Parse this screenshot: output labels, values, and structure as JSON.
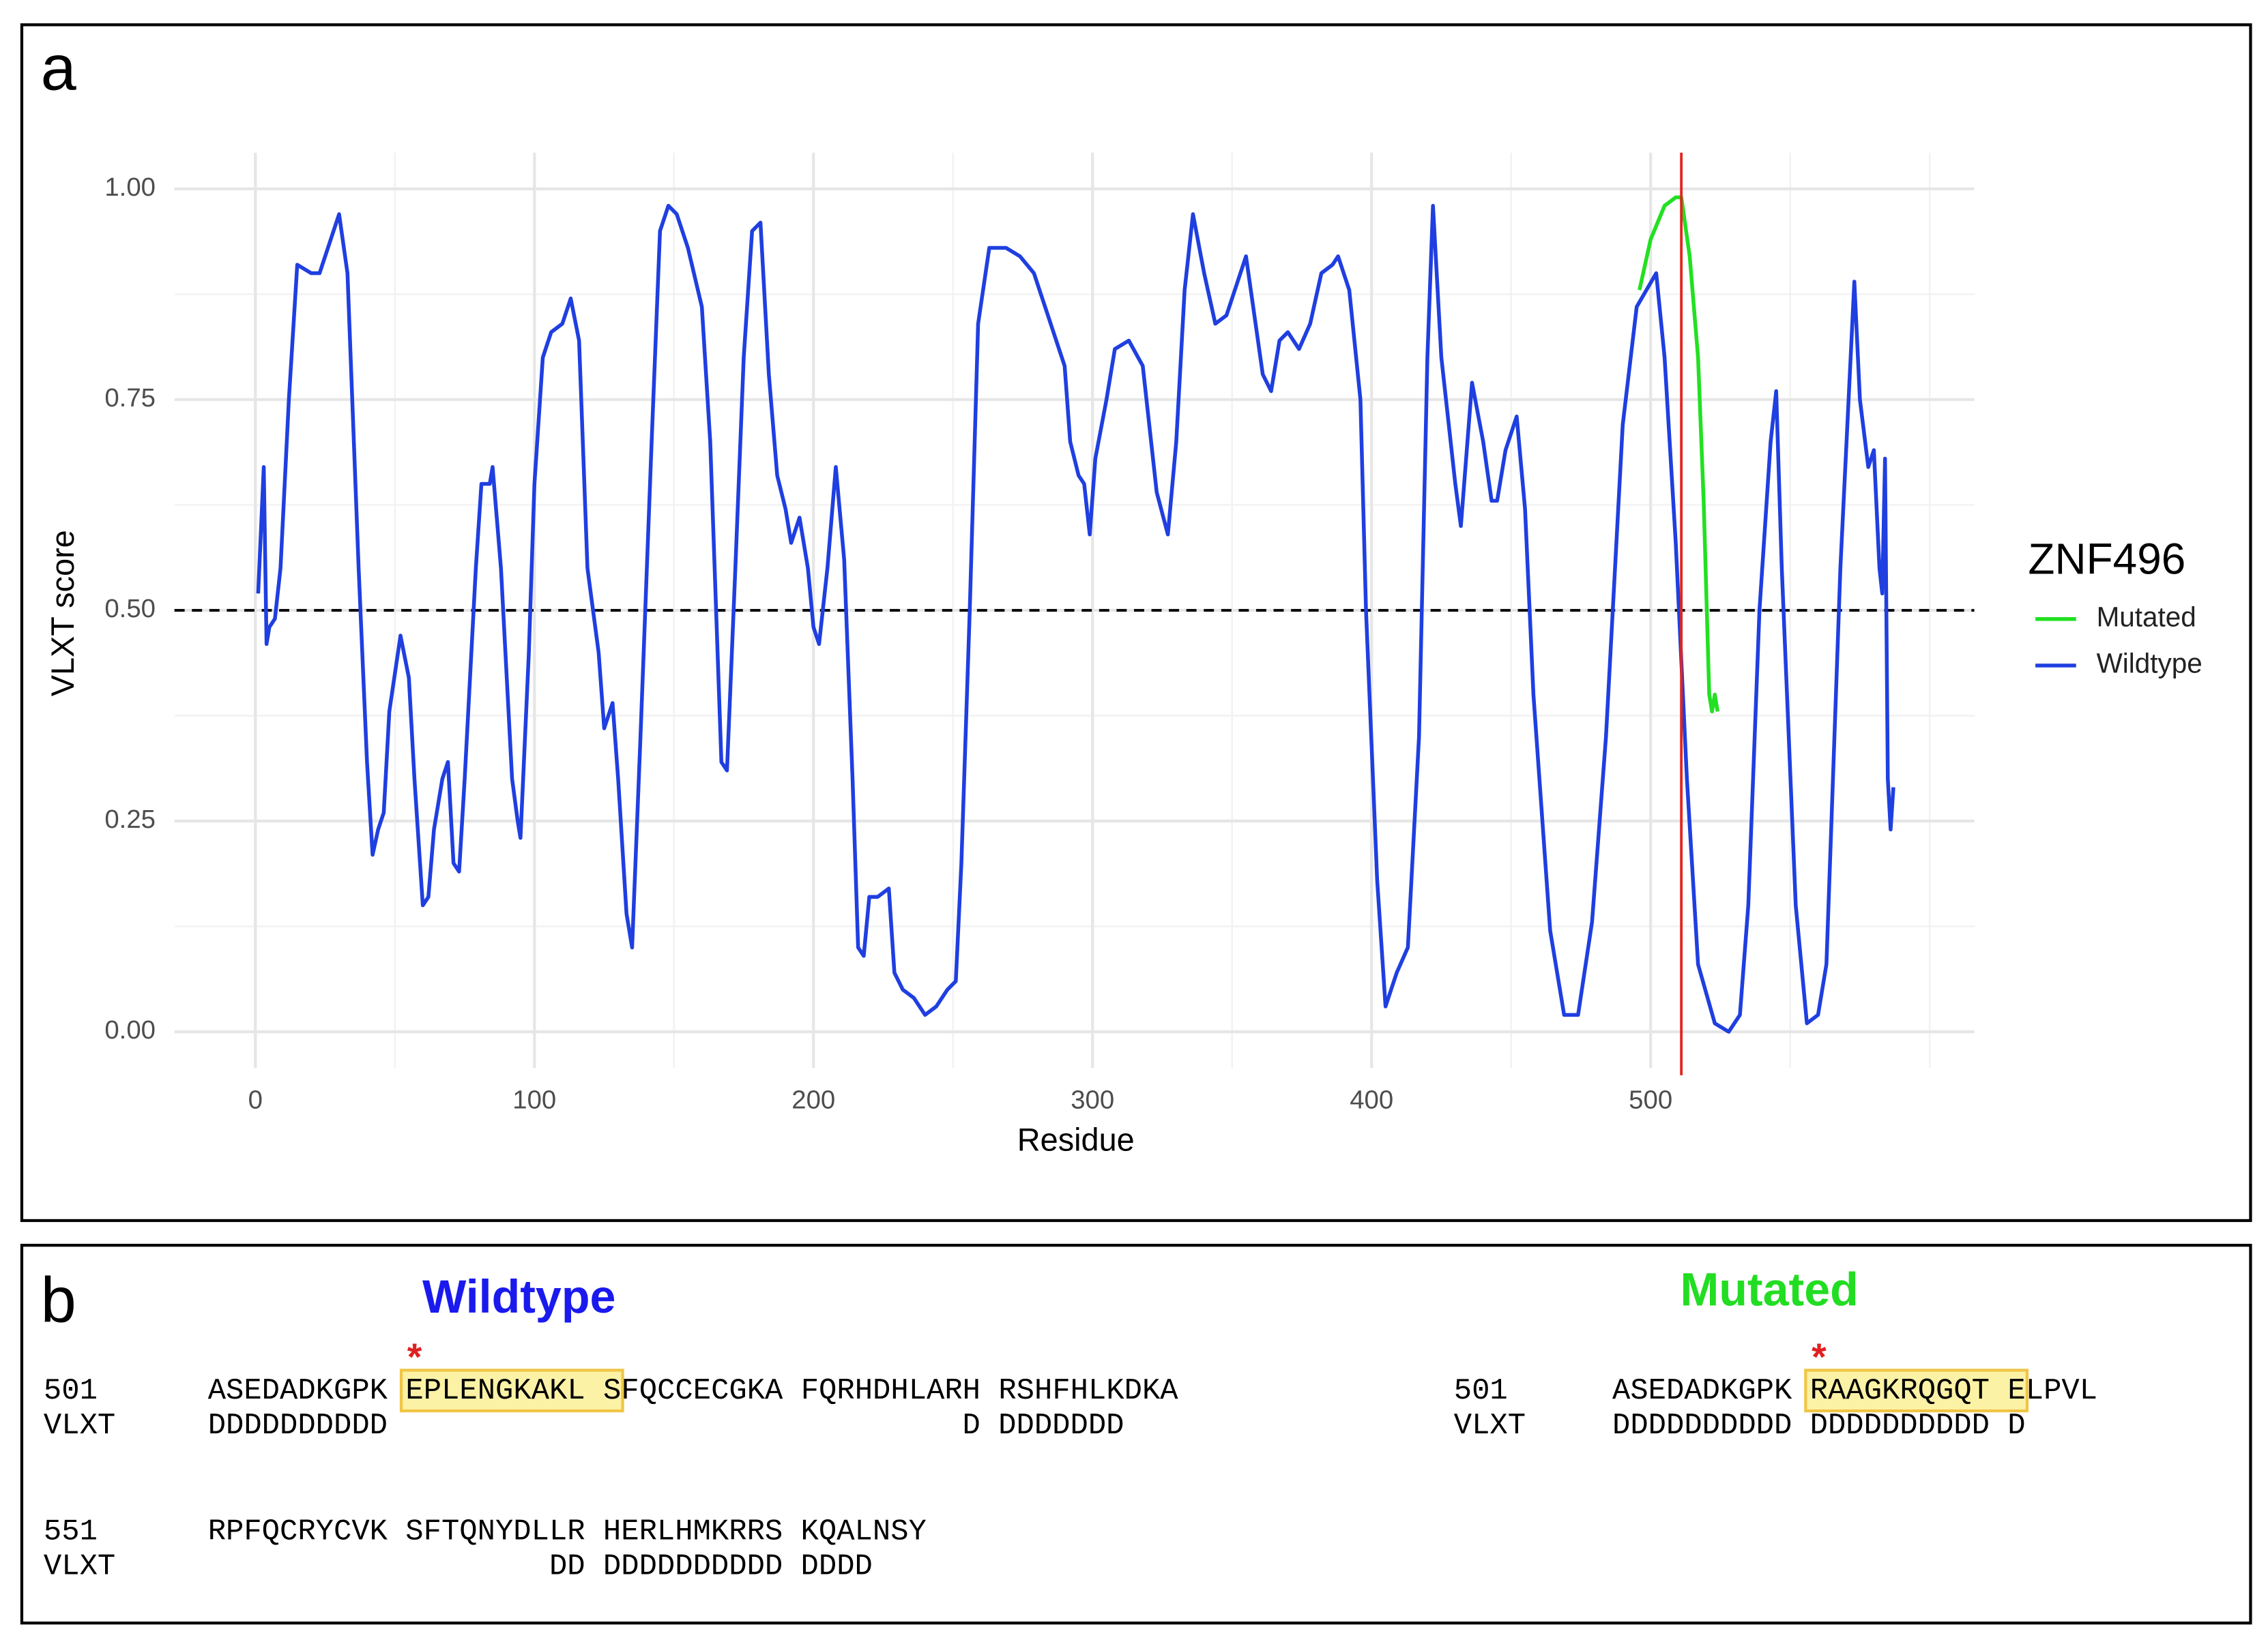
{
  "chart_data": {
    "type": "line",
    "panel_label": "a",
    "xlabel": "Residue",
    "ylabel": "VLXT score",
    "legend_title": "ZNF496",
    "legend": "right",
    "grid": true,
    "xlim": [
      -29,
      616
    ],
    "ylim": [
      -0.043,
      1.043
    ],
    "xticks": [
      0,
      100,
      200,
      300,
      400,
      500
    ],
    "yticks": [
      {
        "value": 0,
        "label": "0.00"
      },
      {
        "value": 0.25,
        "label": "0.25"
      },
      {
        "value": 0.5,
        "label": "0.50"
      },
      {
        "value": 0.75,
        "label": "0.75"
      },
      {
        "value": 1,
        "label": "1.00"
      }
    ],
    "hline": {
      "y": 0.5,
      "color": "#000000",
      "style": "dashed"
    },
    "vline": {
      "x": 511,
      "color": "#e0261f"
    },
    "series": [
      {
        "name": "Mutated",
        "color": "#22e022",
        "x": [
          496,
          500,
          505,
          509,
          511,
          514,
          517,
          519,
          521,
          522,
          523,
          524
        ],
        "values": [
          0.88,
          0.94,
          0.98,
          0.99,
          0.99,
          0.92,
          0.8,
          0.63,
          0.4,
          0.38,
          0.4,
          0.38
        ]
      },
      {
        "name": "Wildtype",
        "color": "#1f3fe0",
        "x": [
          1,
          3,
          4,
          5,
          7,
          9,
          12,
          15,
          20,
          23,
          30,
          33,
          37,
          40,
          42,
          44,
          46,
          48,
          52,
          55,
          57,
          60,
          62,
          64,
          67,
          69,
          71,
          73,
          75,
          79,
          81,
          84,
          85,
          88,
          92,
          94,
          95,
          98,
          100,
          103,
          106,
          110,
          113,
          116,
          119,
          123,
          125,
          128,
          130,
          133,
          135,
          138,
          142,
          145,
          148,
          151,
          155,
          160,
          163,
          167,
          169,
          172,
          175,
          178,
          181,
          184,
          187,
          190,
          192,
          195,
          198,
          200,
          202,
          205,
          208,
          211,
          214,
          216,
          218,
          220,
          223,
          227,
          229,
          232,
          236,
          240,
          244,
          248,
          251,
          253,
          256,
          259,
          263,
          266,
          269,
          274,
          279,
          283,
          287,
          290,
          292,
          295,
          297,
          299,
          301,
          305,
          308,
          313,
          318,
          323,
          327,
          330,
          333,
          336,
          340,
          344,
          348,
          352,
          355,
          358,
          361,
          364,
          367,
          370,
          374,
          378,
          382,
          386,
          388,
          392,
          396,
          398,
          402,
          405,
          409,
          413,
          417,
          420,
          422,
          425,
          430,
          432,
          436,
          440,
          443,
          445,
          448,
          452,
          455,
          458,
          464,
          469,
          474,
          479,
          484,
          490,
          495,
          502,
          505,
          509,
          513,
          517,
          523,
          528,
          532,
          535,
          539,
          543,
          545,
          547,
          552,
          556,
          560,
          563,
          568,
          573,
          575,
          578,
          580,
          582,
          583,
          584,
          585,
          586,
          587
        ],
        "values": [
          0.52,
          0.67,
          0.46,
          0.48,
          0.49,
          0.55,
          0.75,
          0.91,
          0.9,
          0.9,
          0.97,
          0.9,
          0.55,
          0.32,
          0.21,
          0.24,
          0.26,
          0.38,
          0.47,
          0.42,
          0.3,
          0.15,
          0.16,
          0.24,
          0.3,
          0.32,
          0.2,
          0.19,
          0.3,
          0.55,
          0.65,
          0.65,
          0.67,
          0.55,
          0.3,
          0.25,
          0.23,
          0.45,
          0.65,
          0.8,
          0.83,
          0.84,
          0.87,
          0.82,
          0.55,
          0.45,
          0.36,
          0.39,
          0.3,
          0.14,
          0.1,
          0.35,
          0.7,
          0.95,
          0.98,
          0.97,
          0.93,
          0.86,
          0.7,
          0.32,
          0.31,
          0.55,
          0.8,
          0.95,
          0.96,
          0.78,
          0.66,
          0.62,
          0.58,
          0.61,
          0.55,
          0.48,
          0.46,
          0.55,
          0.67,
          0.56,
          0.3,
          0.1,
          0.09,
          0.16,
          0.16,
          0.17,
          0.07,
          0.05,
          0.04,
          0.02,
          0.03,
          0.05,
          0.06,
          0.2,
          0.5,
          0.84,
          0.93,
          0.93,
          0.93,
          0.92,
          0.9,
          0.86,
          0.82,
          0.79,
          0.7,
          0.66,
          0.65,
          0.59,
          0.68,
          0.75,
          0.81,
          0.82,
          0.79,
          0.64,
          0.59,
          0.7,
          0.88,
          0.97,
          0.9,
          0.84,
          0.85,
          0.89,
          0.92,
          0.85,
          0.78,
          0.76,
          0.82,
          0.83,
          0.81,
          0.84,
          0.9,
          0.91,
          0.92,
          0.88,
          0.75,
          0.5,
          0.18,
          0.03,
          0.07,
          0.1,
          0.35,
          0.8,
          0.98,
          0.8,
          0.65,
          0.6,
          0.77,
          0.7,
          0.63,
          0.63,
          0.69,
          0.73,
          0.62,
          0.4,
          0.12,
          0.02,
          0.02,
          0.13,
          0.35,
          0.72,
          0.86,
          0.9,
          0.8,
          0.58,
          0.3,
          0.08,
          0.01,
          0.0,
          0.02,
          0.15,
          0.5,
          0.7,
          0.76,
          0.55,
          0.15,
          0.01,
          0.02,
          0.08,
          0.55,
          0.89,
          0.75,
          0.67,
          0.69,
          0.55,
          0.52,
          0.68,
          0.3,
          0.24,
          0.29
        ]
      }
    ]
  },
  "panel_b": {
    "label": "b",
    "wildtype": {
      "heading": "Wildtype",
      "heading_color": "#1a1aee",
      "marker": "*",
      "rows": [
        {
          "number": "501",
          "before": "ASEDADKGPK ",
          "highlighted": "EPLENGKAKL S",
          "after": "FQCCECGKA FQRHDHLARH RSHFHLKDKA",
          "track": "VLXT",
          "prediction": "DDDDDDDDDD                                D DDDDDDD"
        },
        {
          "number": "551",
          "before": "RPFQCRYCVK SFTQNYDLLR HERLHMKRRS KQALNSY",
          "track": "VLXT",
          "prediction": "                   DD DDDDDDDDDD DDDD"
        }
      ]
    },
    "mutated": {
      "heading": "Mutated",
      "heading_color": "#22dd22",
      "marker": "*",
      "rows": [
        {
          "number": "501",
          "before": "ASEDADKGPK ",
          "highlighted": "RAAGKRQGQT E",
          "after": "LPVL",
          "track": "VLXT",
          "prediction": "DDDDDDDDDD DDDDDDDDDD D"
        }
      ]
    }
  }
}
